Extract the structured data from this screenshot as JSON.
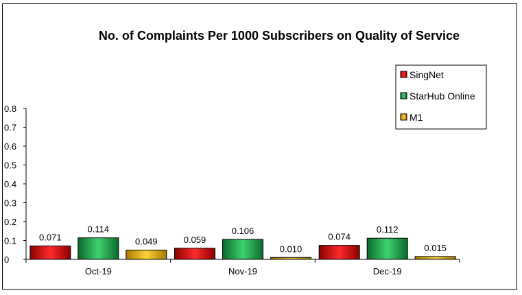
{
  "chart_data": {
    "type": "bar",
    "title": "No. of Complaints Per 1000 Subscribers on Quality of Service",
    "categories": [
      "Oct-19",
      "Nov-19",
      "Dec-19"
    ],
    "series": [
      {
        "name": "SingNet",
        "values": [
          0.071,
          0.059,
          0.074
        ],
        "value_labels": [
          "0.071",
          "0.059",
          "0.074"
        ],
        "color": "#cc0000"
      },
      {
        "name": "StarHub Online",
        "values": [
          0.114,
          0.106,
          0.112
        ],
        "value_labels": [
          "0.114",
          "0.106",
          "0.112"
        ],
        "color": "#1fa04a"
      },
      {
        "name": "M1",
        "values": [
          0.049,
          0.01,
          0.015
        ],
        "value_labels": [
          "0.049",
          "0.010",
          "0.015"
        ],
        "color": "#e8b400"
      }
    ],
    "ylim": [
      0,
      0.8
    ],
    "yticks": [
      0,
      0.1,
      0.2,
      0.3,
      0.4,
      0.5,
      0.6,
      0.7,
      0.8
    ],
    "ytick_labels": [
      "0",
      "0.1",
      "0.2",
      "0.3",
      "0.4",
      "0.5",
      "0.6",
      "0.7",
      "0.8"
    ],
    "legend_position": "top-right",
    "grid": false
  }
}
